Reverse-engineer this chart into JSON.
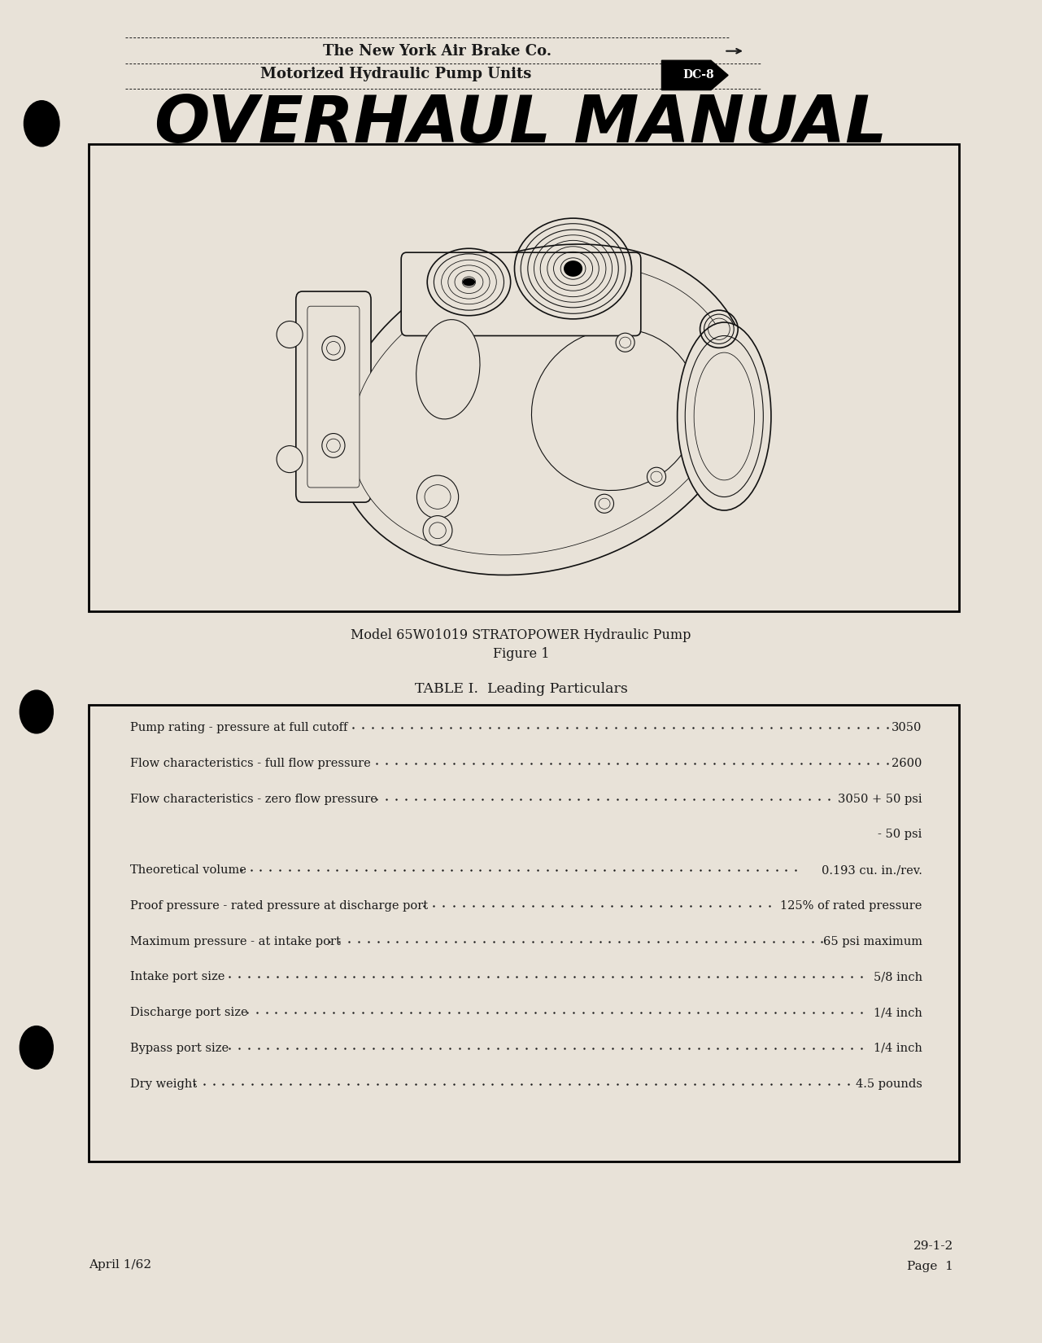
{
  "bg_color": "#e8e2d8",
  "page_width": 12.81,
  "page_height": 16.5,
  "header_line1": "The New York Air Brake Co.",
  "header_line2": "Motorized Hydraulic Pump Units",
  "header_tag": "DC-8",
  "title": "Overhaul Manual",
  "fig_caption_line1": "Model 65W01019 STRATOPOWER Hydraulic Pump",
  "fig_caption_line2": "Figure 1",
  "table_title": "TABLE I.  Leading Particulars",
  "table_rows": [
    {
      "label": "Pump rating - pressure at full cutoff",
      "dots": true,
      "value": "3050"
    },
    {
      "label": "Flow characteristics - full flow pressure",
      "dots": true,
      "value": "2600"
    },
    {
      "label": "Flow characteristics - zero flow pressure",
      "dots": true,
      "value": "3050 + 50 psi"
    },
    {
      "label": "",
      "dots": false,
      "value": "- 50 psi"
    },
    {
      "label": "Theoretical volume",
      "dots": true,
      "value": "0.193 cu. in./rev."
    },
    {
      "label": "Proof pressure - rated pressure at discharge port",
      "dots": true,
      "value": "125% of rated pressure"
    },
    {
      "label": "Maximum pressure - at intake port",
      "dots": true,
      "value": "65 psi maximum"
    },
    {
      "label": "Intake port size",
      "dots": true,
      "value": "5/8 inch"
    },
    {
      "label": "Discharge port size",
      "dots": true,
      "value": "1/4 inch"
    },
    {
      "label": "Bypass port size",
      "dots": true,
      "value": "1/4 inch"
    },
    {
      "label": "Dry weight",
      "dots": true,
      "value": "4.5 pounds"
    }
  ],
  "footer_left": "April 1/62",
  "footer_right_top": "29-1-2",
  "footer_right_bottom": "Page  1",
  "text_color": "#1a1a1a"
}
